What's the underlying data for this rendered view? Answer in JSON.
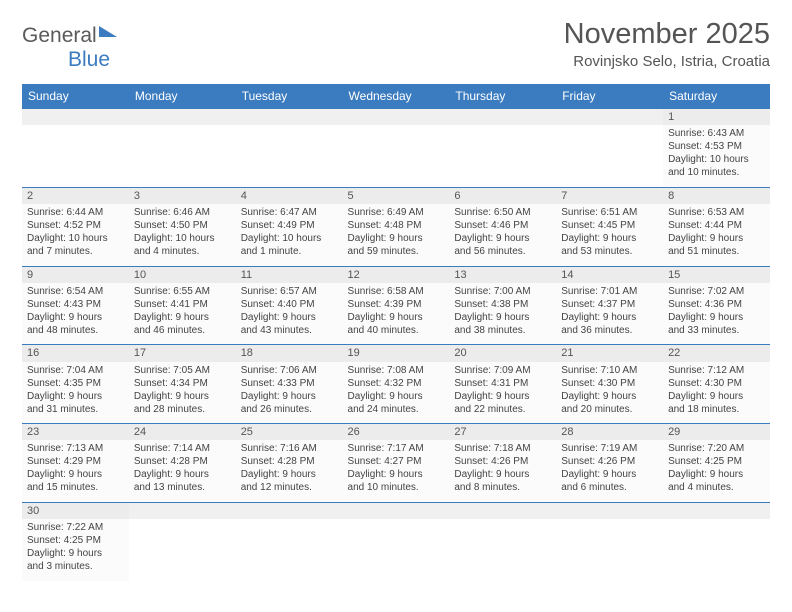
{
  "logo": {
    "part1": "General",
    "part2": "Blue"
  },
  "title": "November 2025",
  "location": "Rovinjsko Selo, Istria, Croatia",
  "colors": {
    "header_bg": "#3b7bbf",
    "header_fg": "#ffffff",
    "text": "#444444",
    "title_text": "#555555",
    "cell_alt": "#ececec",
    "cell_bg": "#fbfbfb",
    "border": "#3b7bbf"
  },
  "days_of_week": [
    "Sunday",
    "Monday",
    "Tuesday",
    "Wednesday",
    "Thursday",
    "Friday",
    "Saturday"
  ],
  "weeks": [
    [
      null,
      null,
      null,
      null,
      null,
      null,
      {
        "n": "1",
        "sr": "Sunrise: 6:43 AM",
        "ss": "Sunset: 4:53 PM",
        "d1": "Daylight: 10 hours",
        "d2": "and 10 minutes."
      }
    ],
    [
      {
        "n": "2",
        "sr": "Sunrise: 6:44 AM",
        "ss": "Sunset: 4:52 PM",
        "d1": "Daylight: 10 hours",
        "d2": "and 7 minutes."
      },
      {
        "n": "3",
        "sr": "Sunrise: 6:46 AM",
        "ss": "Sunset: 4:50 PM",
        "d1": "Daylight: 10 hours",
        "d2": "and 4 minutes."
      },
      {
        "n": "4",
        "sr": "Sunrise: 6:47 AM",
        "ss": "Sunset: 4:49 PM",
        "d1": "Daylight: 10 hours",
        "d2": "and 1 minute."
      },
      {
        "n": "5",
        "sr": "Sunrise: 6:49 AM",
        "ss": "Sunset: 4:48 PM",
        "d1": "Daylight: 9 hours",
        "d2": "and 59 minutes."
      },
      {
        "n": "6",
        "sr": "Sunrise: 6:50 AM",
        "ss": "Sunset: 4:46 PM",
        "d1": "Daylight: 9 hours",
        "d2": "and 56 minutes."
      },
      {
        "n": "7",
        "sr": "Sunrise: 6:51 AM",
        "ss": "Sunset: 4:45 PM",
        "d1": "Daylight: 9 hours",
        "d2": "and 53 minutes."
      },
      {
        "n": "8",
        "sr": "Sunrise: 6:53 AM",
        "ss": "Sunset: 4:44 PM",
        "d1": "Daylight: 9 hours",
        "d2": "and 51 minutes."
      }
    ],
    [
      {
        "n": "9",
        "sr": "Sunrise: 6:54 AM",
        "ss": "Sunset: 4:43 PM",
        "d1": "Daylight: 9 hours",
        "d2": "and 48 minutes."
      },
      {
        "n": "10",
        "sr": "Sunrise: 6:55 AM",
        "ss": "Sunset: 4:41 PM",
        "d1": "Daylight: 9 hours",
        "d2": "and 46 minutes."
      },
      {
        "n": "11",
        "sr": "Sunrise: 6:57 AM",
        "ss": "Sunset: 4:40 PM",
        "d1": "Daylight: 9 hours",
        "d2": "and 43 minutes."
      },
      {
        "n": "12",
        "sr": "Sunrise: 6:58 AM",
        "ss": "Sunset: 4:39 PM",
        "d1": "Daylight: 9 hours",
        "d2": "and 40 minutes."
      },
      {
        "n": "13",
        "sr": "Sunrise: 7:00 AM",
        "ss": "Sunset: 4:38 PM",
        "d1": "Daylight: 9 hours",
        "d2": "and 38 minutes."
      },
      {
        "n": "14",
        "sr": "Sunrise: 7:01 AM",
        "ss": "Sunset: 4:37 PM",
        "d1": "Daylight: 9 hours",
        "d2": "and 36 minutes."
      },
      {
        "n": "15",
        "sr": "Sunrise: 7:02 AM",
        "ss": "Sunset: 4:36 PM",
        "d1": "Daylight: 9 hours",
        "d2": "and 33 minutes."
      }
    ],
    [
      {
        "n": "16",
        "sr": "Sunrise: 7:04 AM",
        "ss": "Sunset: 4:35 PM",
        "d1": "Daylight: 9 hours",
        "d2": "and 31 minutes."
      },
      {
        "n": "17",
        "sr": "Sunrise: 7:05 AM",
        "ss": "Sunset: 4:34 PM",
        "d1": "Daylight: 9 hours",
        "d2": "and 28 minutes."
      },
      {
        "n": "18",
        "sr": "Sunrise: 7:06 AM",
        "ss": "Sunset: 4:33 PM",
        "d1": "Daylight: 9 hours",
        "d2": "and 26 minutes."
      },
      {
        "n": "19",
        "sr": "Sunrise: 7:08 AM",
        "ss": "Sunset: 4:32 PM",
        "d1": "Daylight: 9 hours",
        "d2": "and 24 minutes."
      },
      {
        "n": "20",
        "sr": "Sunrise: 7:09 AM",
        "ss": "Sunset: 4:31 PM",
        "d1": "Daylight: 9 hours",
        "d2": "and 22 minutes."
      },
      {
        "n": "21",
        "sr": "Sunrise: 7:10 AM",
        "ss": "Sunset: 4:30 PM",
        "d1": "Daylight: 9 hours",
        "d2": "and 20 minutes."
      },
      {
        "n": "22",
        "sr": "Sunrise: 7:12 AM",
        "ss": "Sunset: 4:30 PM",
        "d1": "Daylight: 9 hours",
        "d2": "and 18 minutes."
      }
    ],
    [
      {
        "n": "23",
        "sr": "Sunrise: 7:13 AM",
        "ss": "Sunset: 4:29 PM",
        "d1": "Daylight: 9 hours",
        "d2": "and 15 minutes."
      },
      {
        "n": "24",
        "sr": "Sunrise: 7:14 AM",
        "ss": "Sunset: 4:28 PM",
        "d1": "Daylight: 9 hours",
        "d2": "and 13 minutes."
      },
      {
        "n": "25",
        "sr": "Sunrise: 7:16 AM",
        "ss": "Sunset: 4:28 PM",
        "d1": "Daylight: 9 hours",
        "d2": "and 12 minutes."
      },
      {
        "n": "26",
        "sr": "Sunrise: 7:17 AM",
        "ss": "Sunset: 4:27 PM",
        "d1": "Daylight: 9 hours",
        "d2": "and 10 minutes."
      },
      {
        "n": "27",
        "sr": "Sunrise: 7:18 AM",
        "ss": "Sunset: 4:26 PM",
        "d1": "Daylight: 9 hours",
        "d2": "and 8 minutes."
      },
      {
        "n": "28",
        "sr": "Sunrise: 7:19 AM",
        "ss": "Sunset: 4:26 PM",
        "d1": "Daylight: 9 hours",
        "d2": "and 6 minutes."
      },
      {
        "n": "29",
        "sr": "Sunrise: 7:20 AM",
        "ss": "Sunset: 4:25 PM",
        "d1": "Daylight: 9 hours",
        "d2": "and 4 minutes."
      }
    ],
    [
      {
        "n": "30",
        "sr": "Sunrise: 7:22 AM",
        "ss": "Sunset: 4:25 PM",
        "d1": "Daylight: 9 hours",
        "d2": "and 3 minutes."
      },
      null,
      null,
      null,
      null,
      null,
      null
    ]
  ]
}
